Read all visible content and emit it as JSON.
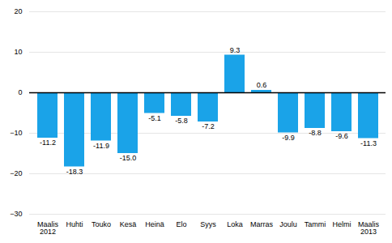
{
  "chart_data": {
    "type": "bar",
    "categories": [
      "Maalis\n2012",
      "Huhti",
      "Touko",
      "Kesä",
      "Heinä",
      "Elo",
      "Syys",
      "Loka",
      "Marras",
      "Joulu",
      "Tammi",
      "Helmi",
      "Maalis\n2013"
    ],
    "values": [
      -11.2,
      -18.3,
      -11.9,
      -15.0,
      -5.1,
      -5.8,
      -7.2,
      9.3,
      0.6,
      -9.9,
      -8.8,
      -9.6,
      -11.3
    ],
    "value_labels": [
      "-11.2",
      "-18.3",
      "-11.9",
      "-15.0",
      "-5.1",
      "-5.8",
      "-7.2",
      "9.3",
      "0.6",
      "-9.9",
      "-8.8",
      "-9.6",
      "-11.3"
    ],
    "color": "#1aa3e8",
    "ylim": [
      -30,
      20
    ],
    "yticks": [
      -30,
      -20,
      -10,
      0,
      10,
      20
    ],
    "grid": true,
    "data_labels": true
  }
}
